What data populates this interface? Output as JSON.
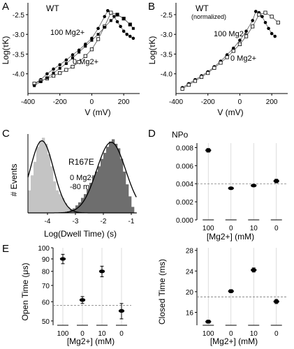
{
  "chart_data": [
    {
      "panel": "A",
      "type": "scatter",
      "annotation": "WT",
      "xlabel": "V (mV)",
      "ylabel": "Log(τK)",
      "xlim": [
        -400,
        300
      ],
      "ylim": [
        -4.5,
        -2.2
      ],
      "xticks": [
        -400,
        -200,
        0,
        200
      ],
      "yticks": [
        -4.0,
        -3.5,
        -3.0,
        -2.5
      ],
      "xtick_labels": [
        "-400",
        "-200",
        "0",
        "200"
      ],
      "ytick_labels": [
        "-4.0",
        "-3.5",
        "-3.0",
        "-2.5"
      ],
      "series_labels": [
        "100 Mg2+",
        "0 Mg2+"
      ],
      "series": [
        {
          "marker": "filled-circle",
          "x": [
            -360,
            -320,
            -280,
            -240,
            -200,
            -160,
            -120,
            -80,
            -40,
            0,
            40,
            80,
            100,
            120,
            140,
            160,
            180,
            200,
            220,
            240,
            260
          ],
          "y": [
            -4.25,
            -4.15,
            -4.0,
            -3.88,
            -3.77,
            -3.65,
            -3.52,
            -3.4,
            -3.25,
            -3.1,
            -2.85,
            -2.55,
            -2.4,
            -2.45,
            -2.55,
            -2.68,
            -2.8,
            -2.92,
            -3.0,
            -3.05,
            -3.1
          ]
        },
        {
          "marker": "open-square",
          "x": [
            -360,
            -320,
            -280,
            -240,
            -200,
            -160,
            -120,
            -80,
            -40,
            0,
            40,
            80,
            120,
            160,
            200,
            240
          ],
          "y": [
            -4.25,
            -4.18,
            -4.12,
            -4.05,
            -3.98,
            -3.9,
            -3.82,
            -3.7,
            -3.55,
            -3.38,
            -3.12,
            -2.8,
            -2.45,
            -2.5,
            -2.6,
            -2.75
          ]
        },
        {
          "marker": "filled-square",
          "x": [
            -360,
            -320,
            -280,
            -240,
            -200,
            -160,
            -120,
            -80,
            -40,
            0,
            40,
            80,
            120,
            160,
            200,
            240,
            260
          ],
          "y": [
            -4.3,
            -4.2,
            -4.1,
            -3.98,
            -3.86,
            -3.74,
            -3.6,
            -3.45,
            -3.3,
            -3.15,
            -3.0,
            -2.82,
            -2.65,
            -2.5,
            -2.6,
            -2.75,
            -2.85
          ]
        }
      ]
    },
    {
      "panel": "B",
      "type": "scatter",
      "annotation": "WT",
      "annotation2": "(normalized)",
      "xlabel": "V (mV)",
      "ylabel": "Log(τK)",
      "xlim": [
        -400,
        300
      ],
      "ylim": [
        -4.5,
        -2.2
      ],
      "xticks": [
        -400,
        -200,
        0,
        200
      ],
      "yticks": [
        -4.0,
        -3.5,
        -3.0,
        -2.5
      ],
      "xtick_labels": [
        "-400",
        "-200",
        "0",
        "200"
      ],
      "ytick_labels": [
        "-4.0",
        "-3.5",
        "-3.0",
        "-2.5"
      ],
      "series_labels": [
        "100 Mg2+",
        "0 Mg2+"
      ],
      "series": [
        {
          "marker": "filled-circle",
          "x": [
            -360,
            -320,
            -280,
            -240,
            -200,
            -160,
            -120,
            -80,
            -40,
            0,
            40,
            80,
            100,
            120,
            140,
            160,
            180,
            200,
            220
          ],
          "y": [
            -4.35,
            -4.25,
            -4.15,
            -4.05,
            -3.95,
            -3.82,
            -3.68,
            -3.52,
            -3.35,
            -3.15,
            -2.92,
            -2.65,
            -2.42,
            -2.45,
            -2.55,
            -2.7,
            -2.85,
            -2.98,
            -3.05
          ]
        },
        {
          "marker": "open-square",
          "x": [
            -360,
            -320,
            -280,
            -240,
            -200,
            -160,
            -120,
            -80,
            -40,
            0,
            40,
            80,
            120,
            160,
            200,
            240
          ],
          "y": [
            -4.38,
            -4.28,
            -4.18,
            -4.08,
            -3.98,
            -3.85,
            -3.72,
            -3.58,
            -3.42,
            -3.25,
            -3.05,
            -2.8,
            -2.5,
            -2.45,
            -2.55,
            -2.7
          ]
        }
      ]
    },
    {
      "panel": "C",
      "type": "histogram",
      "annotation": "R167E",
      "conditions": [
        "0 Mg2+",
        "-80 mV"
      ],
      "xlabel": "Log(Dwell Time) (s)",
      "ylabel": "# Events",
      "xlim": [
        -4.7,
        -0.8
      ],
      "ylim": [
        0,
        1.05
      ],
      "xticks": [
        -4,
        -3,
        -2,
        -1
      ],
      "xtick_labels": [
        "-4",
        "-3",
        "-2",
        "-1"
      ],
      "series": [
        {
          "color": "#c4c4c4",
          "x": [
            -4.7,
            -4.6,
            -4.5,
            -4.4,
            -4.3,
            -4.2,
            -4.1,
            -4.0,
            -3.9,
            -3.8,
            -3.7,
            -3.6,
            -3.5,
            -3.4,
            -3.3,
            -3.2,
            -3.1,
            -3.0,
            -2.9
          ],
          "values": [
            0.3,
            0.5,
            0.68,
            0.88,
            0.96,
            1.0,
            0.92,
            0.78,
            0.62,
            0.42,
            0.3,
            0.25,
            0.2,
            0.13,
            0.08,
            0.05,
            0.03,
            0.02,
            0.01
          ]
        },
        {
          "color": "#6e6e6e",
          "x": [
            -3.3,
            -3.2,
            -3.1,
            -3.0,
            -2.9,
            -2.8,
            -2.7,
            -2.6,
            -2.5,
            -2.4,
            -2.3,
            -2.2,
            -2.1,
            -2.0,
            -1.9,
            -1.8,
            -1.7,
            -1.6,
            -1.5,
            -1.4,
            -1.3,
            -1.2,
            -1.1,
            -1.0
          ],
          "values": [
            0.02,
            0.04,
            0.06,
            0.1,
            0.14,
            0.2,
            0.25,
            0.32,
            0.4,
            0.5,
            0.55,
            0.62,
            0.72,
            0.8,
            0.88,
            0.95,
            0.98,
            0.92,
            0.86,
            0.72,
            0.55,
            0.38,
            0.22,
            0.08
          ]
        }
      ],
      "fits": [
        {
          "mean": -4.2,
          "sd": 0.42,
          "amp": 0.96
        },
        {
          "mean": -1.72,
          "sd": 0.52,
          "amp": 0.94
        }
      ]
    },
    {
      "panel": "D",
      "type": "scatter",
      "title": "NPo",
      "xlabel": "[Mg2+] (mM)",
      "categories": [
        "100",
        "0",
        "10",
        "0"
      ],
      "values": [
        0.0077,
        0.0035,
        0.0038,
        0.0043
      ],
      "errors": [
        0.0002,
        0.0001,
        0.0001,
        0.0002
      ],
      "ylim": [
        0,
        0.0085
      ],
      "yticks": [
        0,
        0.002,
        0.004,
        0.006,
        0.008
      ],
      "ytick_labels": [
        "0.000",
        "0.002",
        "0.004",
        "0.006",
        "0.008"
      ],
      "reference_line": 0.004
    },
    {
      "panel": "E",
      "type": "scatter",
      "ylabel": "Open Time (μs)",
      "xlabel": "[Mg2+] (mM)",
      "categories": [
        "100",
        "0",
        "10",
        "0"
      ],
      "values": [
        90,
        61,
        80,
        55
      ],
      "errors": [
        4,
        2,
        4,
        4
      ],
      "ylim": [
        48,
        100
      ],
      "log_y": true,
      "yticks": [
        50,
        60,
        70,
        80,
        90,
        100
      ],
      "ytick_labels": [
        "50",
        "60",
        "70",
        "80",
        "90",
        "100"
      ],
      "reference_line": 58
    },
    {
      "panel": "E2",
      "type": "scatter",
      "ylabel": "Closed Time (ms)",
      "xlabel": "[Mg2+] (mM)",
      "categories": [
        "100",
        "0",
        "10",
        "0"
      ],
      "values": [
        14.2,
        20.1,
        24.2,
        18.1
      ],
      "errors": [
        0.3,
        0.3,
        0.4,
        0.4
      ],
      "ylim": [
        13.5,
        28.5
      ],
      "yticks": [
        16,
        20,
        24,
        28
      ],
      "ytick_labels": [
        "16",
        "20",
        "24",
        "28"
      ],
      "reference_line": 19
    }
  ],
  "panel_labels": [
    "A",
    "B",
    "C",
    "D",
    "E"
  ]
}
